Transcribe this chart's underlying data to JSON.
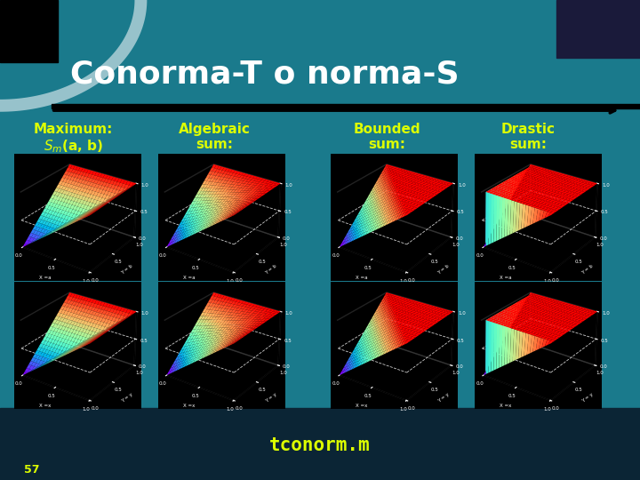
{
  "title": "Conorma-T o norma-S",
  "title_color": "#FFFFFF",
  "title_fontsize": 26,
  "title_fontweight": "bold",
  "bg_color_top": "#1a7a8c",
  "bg_color_bottom": "#0a2535",
  "arc_color": "#FFFFFF",
  "arrow_color": "#000000",
  "col_label_color": "#DDFF00",
  "col_label_fontsize": 11,
  "col_label_fontweight": "bold",
  "footer_text": "tconorm.m",
  "footer_color": "#DDFF00",
  "footer_fontsize": 15,
  "footer_fontweight": "bold",
  "slide_number": "57",
  "slide_number_color": "#DDFF00",
  "plot_bg_color": "#000000",
  "divider_color": "#1a2a3a"
}
